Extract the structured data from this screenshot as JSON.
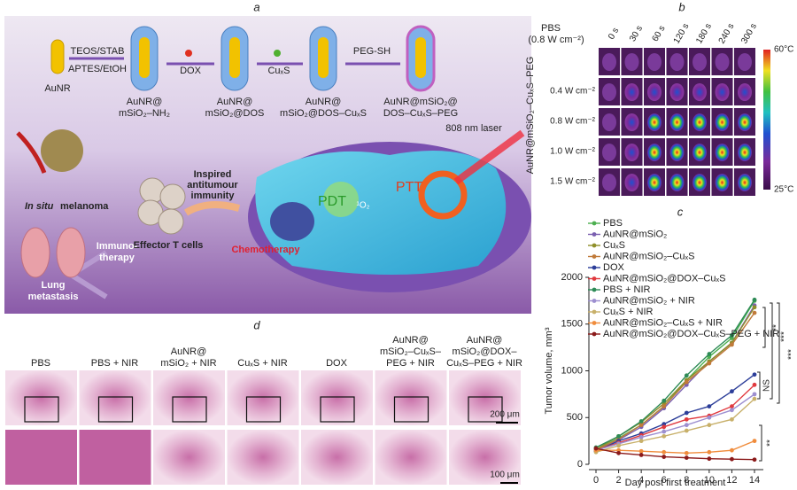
{
  "panel_labels": [
    "a",
    "b",
    "c",
    "d"
  ],
  "schematic": {
    "reagents": [
      "AuNR",
      "TEOS/STAB",
      "APTES/EtOH",
      "DOX",
      "CuₓS",
      "PEG-SH"
    ],
    "products": [
      [
        "AuNR@",
        "mSiO₂–NH₂"
      ],
      [
        "AuNR@",
        "mSiO₂@DOS"
      ],
      [
        "AuNR@",
        "mSiO₂@DOS–CuₓS"
      ],
      [
        "AuNR@mSiO₂@",
        "DOS–CuₓS–PEG"
      ]
    ],
    "laser": "808 nm laser",
    "pdt": "PDT",
    "ptt": "PTT",
    "singlet": "¹O₂",
    "chemo": "Chemotherapy",
    "immunity": [
      "Inspired",
      "antitumour",
      "immunity"
    ],
    "tcells": "Effector T cells",
    "immuno": [
      "Immuno-",
      "therapy"
    ],
    "melanoma": [
      "In situ",
      " melanoma"
    ],
    "lung": [
      "Lung",
      "metastasis"
    ]
  },
  "thermal": {
    "control": [
      "PBS",
      "(0.8 W cm⁻²)"
    ],
    "times": [
      "0 s",
      "30 s",
      "60 s",
      "120 s",
      "180 s",
      "240 s",
      "300 s"
    ],
    "powers": [
      "0.4 W cm⁻²",
      "0.8 W cm⁻²",
      "1.0 W cm⁻²",
      "1.5 W cm⁻²"
    ],
    "material": "AuNR@mSiO₂–CuₓS–PEG",
    "scale": [
      "60°C",
      "25°C"
    ]
  },
  "histology": {
    "groups": [
      [
        "PBS"
      ],
      [
        "PBS + NIR"
      ],
      [
        "AuNR@",
        "mSiO₂ + NIR"
      ],
      [
        "CuₓS + NIR"
      ],
      [
        "DOX"
      ],
      [
        "AuNR@",
        "mSiO₂–CuₓS–",
        "PEG + NIR"
      ],
      [
        "AuNR@",
        "mSiO₂@DOX–",
        "CuₓS–PEG + NIR"
      ]
    ],
    "scale_bars": [
      "200 μm",
      "100 μm"
    ]
  },
  "chart_data": {
    "type": "line",
    "xlabel": "Day post first treatment",
    "ylabel": "Tumor volume, mm³",
    "x": [
      0,
      2,
      4,
      6,
      8,
      10,
      12,
      14
    ],
    "xlim": [
      0,
      14
    ],
    "xticks": [
      0,
      2,
      4,
      6,
      8,
      10,
      12,
      14
    ],
    "ylim": [
      0,
      2000
    ],
    "yticks": [
      0,
      500,
      1000,
      1500,
      2000
    ],
    "series": [
      {
        "name": "PBS",
        "color": "#4caf50",
        "values": [
          150,
          280,
          420,
          620,
          900,
          1150,
          1350,
          1750
        ]
      },
      {
        "name": "AuNR@mSiO₂",
        "color": "#7a5fb0",
        "values": [
          140,
          260,
          400,
          600,
          850,
          1100,
          1300,
          1700
        ]
      },
      {
        "name": "CuₓS",
        "color": "#8f8f2a",
        "values": [
          160,
          300,
          450,
          650,
          900,
          1100,
          1300,
          1680
        ]
      },
      {
        "name": "AuNR@mSiO₂–CuₓS",
        "color": "#c07a3a",
        "values": [
          150,
          270,
          420,
          620,
          880,
          1080,
          1280,
          1620
        ]
      },
      {
        "name": "DOX",
        "color": "#2c3e99",
        "values": [
          140,
          250,
          330,
          430,
          550,
          620,
          780,
          960
        ]
      },
      {
        "name": "AuNR@mSiO₂@DOX–CuₓS",
        "color": "#e0393e",
        "values": [
          150,
          230,
          310,
          400,
          480,
          520,
          620,
          850
        ]
      },
      {
        "name": "PBS + NIR",
        "color": "#2e8b57",
        "values": [
          180,
          300,
          460,
          680,
          950,
          1180,
          1380,
          1760
        ]
      },
      {
        "name": "AuNR@mSiO₂ + NIR",
        "color": "#9d8fd0",
        "values": [
          150,
          220,
          290,
          350,
          420,
          500,
          580,
          750
        ]
      },
      {
        "name": "CuₓS + NIR",
        "color": "#c8b06a",
        "values": [
          130,
          200,
          250,
          300,
          360,
          420,
          480,
          700
        ]
      },
      {
        "name": "AuNR@mSiO₂–CuₓS + NIR",
        "color": "#f08c3c",
        "values": [
          150,
          150,
          140,
          130,
          120,
          130,
          150,
          250
        ]
      },
      {
        "name": "AuNR@mSiO₂@DOX–CuₓS–PEG + NIR",
        "color": "#8b1a1a",
        "values": [
          170,
          120,
          100,
          80,
          70,
          60,
          55,
          50
        ]
      }
    ],
    "annotations": [
      "**",
      "***",
      "***",
      "NS",
      "**"
    ]
  }
}
